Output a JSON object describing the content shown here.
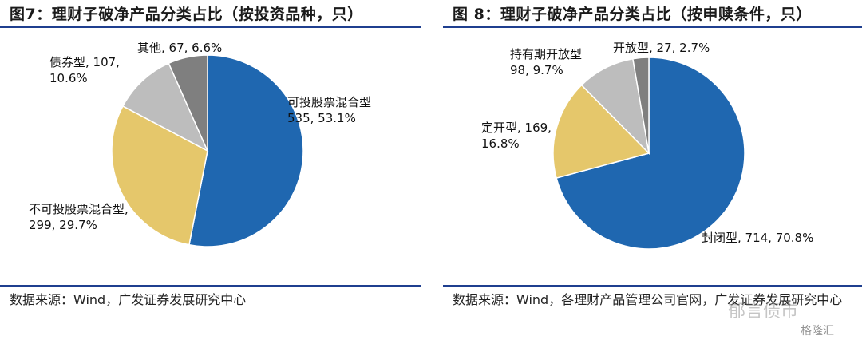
{
  "figures": [
    {
      "title": "图7：理财子破净产品分类占比（按投资品种，只）",
      "source": "数据来源：Wind，广发证券发展研究中心"
    },
    {
      "title": "图 8：理财子破净产品分类占比（按申赎条件，只）",
      "source": "数据来源：Wind，各理财产品管理公司官网，广发证券发展研究中心"
    }
  ],
  "watermark": {
    "text": "郁言债市",
    "badge": "格隆汇"
  },
  "chart_data": [
    {
      "type": "pie",
      "title": "图7：理财子破净产品分类占比（按投资品种，只）",
      "start": "12 o'clock",
      "direction": "clockwise",
      "slices": [
        {
          "label": "可投股票混合型",
          "value": 535,
          "percent": "53.1%",
          "color": "#1f67b0"
        },
        {
          "label": "不可投股票混合型",
          "value": 299,
          "percent": "29.7%",
          "color": "#e5c76b"
        },
        {
          "label": "债券型",
          "value": 107,
          "percent": "10.6%",
          "color": "#bdbdbd"
        },
        {
          "label": "其他",
          "value": 67,
          "percent": "6.6%",
          "color": "#7f7f7f"
        }
      ]
    },
    {
      "type": "pie",
      "title": "图 8：理财子破净产品分类占比（按申赎条件，只）",
      "start": "12 o'clock",
      "direction": "clockwise",
      "slices": [
        {
          "label": "封闭型",
          "value": 714,
          "percent": "70.8%",
          "color": "#1f67b0"
        },
        {
          "label": "定开型",
          "value": 169,
          "percent": "16.8%",
          "color": "#e5c76b"
        },
        {
          "label": "持有期开放型",
          "value": 98,
          "percent": "9.7%",
          "color": "#bdbdbd"
        },
        {
          "label": "开放型",
          "value": 27,
          "percent": "2.7%",
          "color": "#7f7f7f"
        }
      ]
    }
  ]
}
